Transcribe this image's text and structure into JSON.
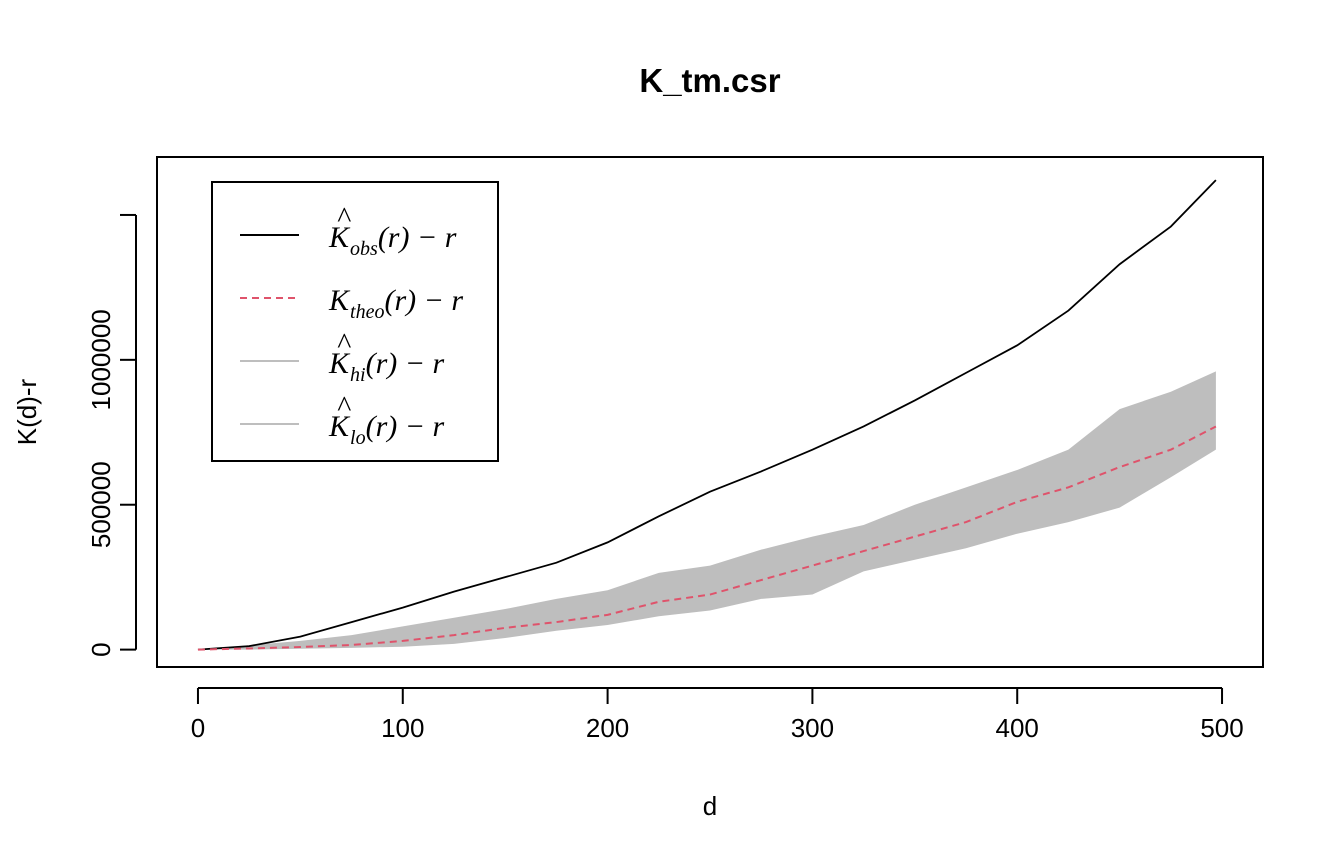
{
  "chart_data": {
    "type": "line",
    "title": "K_tm.csr",
    "xlabel": "d",
    "ylabel": "K(d)-r",
    "xlim": [
      -20,
      520
    ],
    "ylim": [
      -60000,
      1700000
    ],
    "xticks": [
      0,
      100,
      200,
      300,
      400,
      500
    ],
    "xtick_labels": [
      "0",
      "100",
      "200",
      "300",
      "400",
      "500"
    ],
    "yticks": [
      0,
      500000,
      1000000
    ],
    "ytick_labels": [
      "0",
      "500000",
      "1000000"
    ],
    "y_minor_ticks": [
      1500000
    ],
    "legend_position": "top-left",
    "legend": [
      {
        "base": "K",
        "hat": "^",
        "sub": "obs",
        "tail": "(r) − r",
        "style": "solid",
        "color": "#000000"
      },
      {
        "base": "K",
        "hat": "",
        "sub": "theo",
        "tail": "(r) − r",
        "style": "dashed",
        "color": "#DF536B"
      },
      {
        "base": "K",
        "hat": "^",
        "sub": "hi",
        "tail": "(r) − r",
        "style": "solid",
        "color": "#BEBEBE"
      },
      {
        "base": "K",
        "hat": "^",
        "sub": "lo",
        "tail": "(r) − r",
        "style": "solid",
        "color": "#BEBEBE"
      }
    ],
    "x": [
      0,
      25,
      50,
      75,
      100,
      125,
      150,
      175,
      200,
      225,
      250,
      275,
      300,
      325,
      350,
      375,
      400,
      425,
      450,
      475,
      497
    ],
    "series": [
      {
        "name": "Kobs(r) − r",
        "color": "#000000",
        "style": "solid",
        "values": [
          0,
          12000,
          45000,
          95000,
          145000,
          200000,
          250000,
          300000,
          370000,
          460000,
          545000,
          615000,
          690000,
          770000,
          860000,
          955000,
          1050000,
          1170000,
          1330000,
          1460000,
          1620000
        ]
      },
      {
        "name": "Ktheo(r) − r",
        "color": "#DF536B",
        "style": "dashed",
        "values": [
          0,
          4000,
          9000,
          16000,
          30000,
          50000,
          75000,
          95000,
          120000,
          165000,
          190000,
          240000,
          290000,
          340000,
          390000,
          440000,
          510000,
          560000,
          630000,
          690000,
          770000
        ]
      },
      {
        "name": "Khi(r) − r",
        "color": "#BEBEBE",
        "style": "band-upper",
        "values": [
          0,
          15000,
          30000,
          50000,
          80000,
          110000,
          140000,
          175000,
          205000,
          265000,
          290000,
          345000,
          390000,
          430000,
          500000,
          560000,
          620000,
          690000,
          830000,
          890000,
          960000
        ]
      },
      {
        "name": "Klo(r) − r",
        "color": "#BEBEBE",
        "style": "band-lower",
        "values": [
          0,
          0,
          3000,
          6000,
          10000,
          20000,
          40000,
          65000,
          85000,
          115000,
          135000,
          175000,
          190000,
          270000,
          310000,
          350000,
          400000,
          440000,
          490000,
          595000,
          690000
        ]
      }
    ]
  }
}
